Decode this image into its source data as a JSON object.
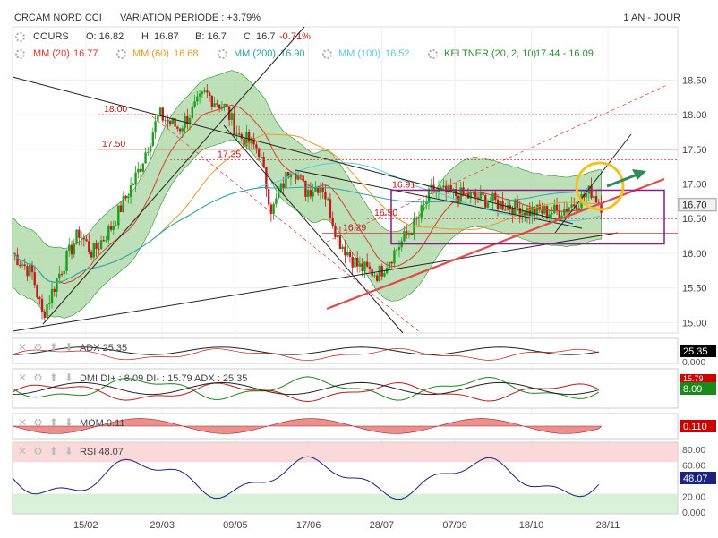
{
  "header": {
    "symbol": "CRCAM NORD CCI",
    "variation": "VARIATION PERIODE : +3.79%",
    "period": "1 AN - JOUR"
  },
  "legend": {
    "cours_label": "COURS",
    "open": "O: 16.82",
    "high": "H: 16.87",
    "low": "B: 16.7",
    "close": "C: 16.7",
    "change": "-0.71%",
    "mm20": "MM (20)",
    "mm20_val": "16.77",
    "mm60": "MM (60)",
    "mm60_val": "16.68",
    "mm200": "MM (200)",
    "mm200_val": "16.90",
    "mm100": "MM (100)",
    "mm100_val": "16.52",
    "keltner": "KELTNER (20, 2, 10)",
    "keltner_val": "17.44 - 16.09"
  },
  "colors": {
    "up": "#1aa01a",
    "down": "#c21a1a",
    "mm20": "#d93b2b",
    "mm60": "#e89a2a",
    "mm200": "#2aa6a6",
    "mm100": "#5bc9e6",
    "keltner": "#2f8f2f",
    "keltner_fill": "#a8d5a0",
    "purple": "#8b1a8b",
    "trend_red": "#e24a4a",
    "circle": "#f2c21a",
    "arrow": "#2f8a5a"
  },
  "icons": [
    "gear-icon",
    "close-icon",
    "arrow-up-icon",
    "arrow-down-icon"
  ],
  "chart_data": {
    "type": "candlestick",
    "x_ticks": [
      "15/02",
      "29/03",
      "09/05",
      "17/06",
      "28/07",
      "07/09",
      "18/10",
      "28/11"
    ],
    "y_ticks": [
      "15.00",
      "15.50",
      "16.00",
      "16.50",
      "17.00",
      "17.50",
      "18.00",
      "18.50"
    ],
    "ylim": [
      14.85,
      18.75
    ],
    "last_price": "16.70",
    "level_labels": [
      {
        "text": "18.00",
        "value": 18.0
      },
      {
        "text": "17.50",
        "value": 17.5
      },
      {
        "text": "17.35",
        "value": 17.35
      },
      {
        "text": "16.91",
        "value": 16.91
      },
      {
        "text": "16.50",
        "value": 16.5
      },
      {
        "text": "16.29",
        "value": 16.29
      }
    ],
    "anchors": [
      {
        "t": 0,
        "v": 16.0
      },
      {
        "t": 0.03,
        "v": 15.7
      },
      {
        "t": 0.045,
        "v": 15.1
      },
      {
        "t": 0.07,
        "v": 15.7
      },
      {
        "t": 0.1,
        "v": 16.3
      },
      {
        "t": 0.12,
        "v": 16.0
      },
      {
        "t": 0.15,
        "v": 16.4
      },
      {
        "t": 0.19,
        "v": 17.2
      },
      {
        "t": 0.22,
        "v": 18.0
      },
      {
        "t": 0.25,
        "v": 17.8
      },
      {
        "t": 0.29,
        "v": 18.3
      },
      {
        "t": 0.32,
        "v": 18.1
      },
      {
        "t": 0.34,
        "v": 17.7
      },
      {
        "t": 0.37,
        "v": 17.5
      },
      {
        "t": 0.39,
        "v": 16.6
      },
      {
        "t": 0.42,
        "v": 17.3
      },
      {
        "t": 0.44,
        "v": 16.9
      },
      {
        "t": 0.465,
        "v": 17.0
      },
      {
        "t": 0.49,
        "v": 16.2
      },
      {
        "t": 0.52,
        "v": 15.8
      },
      {
        "t": 0.55,
        "v": 15.7
      },
      {
        "t": 0.58,
        "v": 16.1
      },
      {
        "t": 0.61,
        "v": 16.5
      },
      {
        "t": 0.63,
        "v": 16.9
      },
      {
        "t": 0.66,
        "v": 16.85
      },
      {
        "t": 0.7,
        "v": 16.8
      },
      {
        "t": 0.74,
        "v": 16.7
      },
      {
        "t": 0.78,
        "v": 16.6
      },
      {
        "t": 0.82,
        "v": 16.6
      },
      {
        "t": 0.85,
        "v": 16.75
      },
      {
        "t": 0.87,
        "v": 16.9
      },
      {
        "t": 0.885,
        "v": 16.7
      }
    ],
    "indicators": [
      {
        "name": "ADX",
        "label": "ADX",
        "value_text": "25.35",
        "value_box": "25.35",
        "box_color": "#000000",
        "axis": [
          "0.000"
        ]
      },
      {
        "name": "DMI",
        "label": "DMI",
        "di_plus": "DI+ : 8.09",
        "di_minus": "DI- : 15.79",
        "adx": "ADX : 25.35",
        "value_box": "8.09",
        "box_color": "#1a8a1a",
        "box_top": "15.79",
        "axis": []
      },
      {
        "name": "MOM",
        "label": "MOM",
        "value_text": "0.11",
        "value_box": "0.110",
        "box_color": "#cc0000",
        "axis": []
      },
      {
        "name": "RSI",
        "label": "RSI",
        "value_text": "48.07",
        "value_box": "48.07",
        "box_color": "#1a237e",
        "axis": [
          "80.00",
          "60.00",
          "40.00",
          "20.00",
          "0.000"
        ]
      }
    ]
  }
}
